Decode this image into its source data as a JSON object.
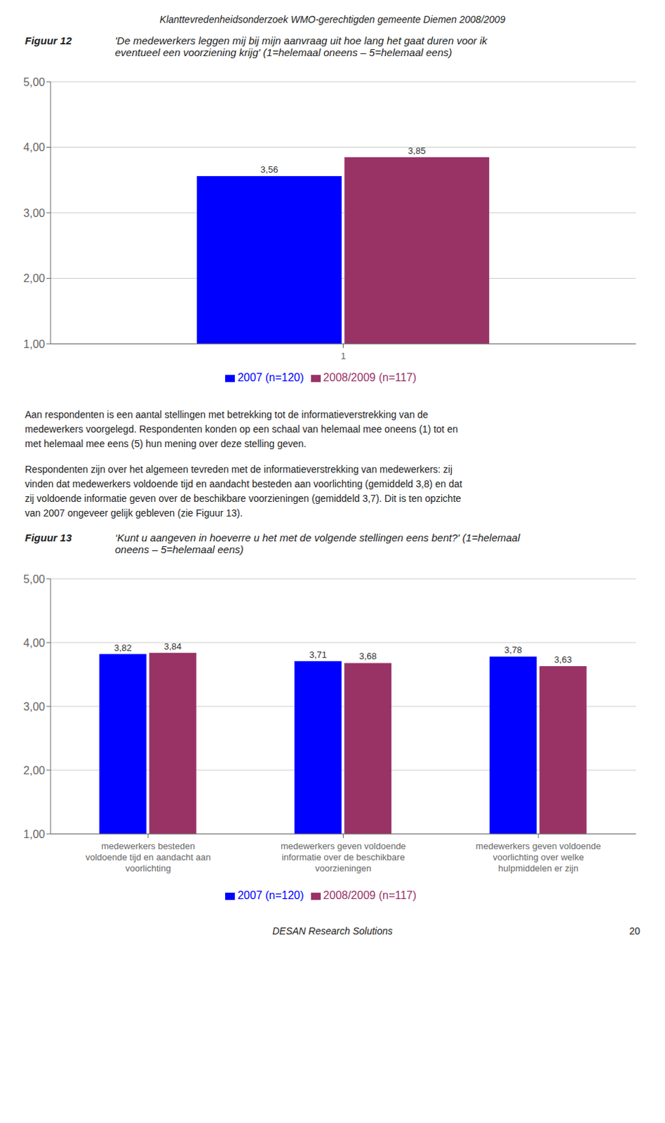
{
  "chart_data": [
    {
      "type": "bar",
      "title": "Figuur 12",
      "subtitle": [
        "'De medewerkers leggen mij bij mijn aanvraag uit hoe lang het gaat duren voor ik",
        "eventueel een voorziening krijg' (1=helemaal oneens – 5=helemaal eens)"
      ],
      "categories": [
        "1"
      ],
      "series": [
        {
          "name": "2007 (n=120)",
          "color": "#0000FF",
          "values": [
            3.56
          ],
          "value_labels": [
            "3,56"
          ]
        },
        {
          "name": "2008/2009 (n=117)",
          "color": "#993366",
          "values": [
            3.85
          ],
          "value_labels": [
            "3,85"
          ]
        }
      ],
      "ylim": [
        1.0,
        5.0
      ],
      "yticks": [
        {
          "value": 1.0,
          "label": "1,00"
        },
        {
          "value": 2.0,
          "label": "2,00"
        },
        {
          "value": 3.0,
          "label": "3,00"
        },
        {
          "value": 4.0,
          "label": "4,00"
        },
        {
          "value": 5.0,
          "label": "5,00"
        }
      ],
      "grid": true,
      "legend": "bottom",
      "data_labels": true,
      "annotations": [
        [
          "Klanttevredenheidsonderzoek WMO-gerechtigden gemeente Diemen 2008/2009"
        ],
        [
          "Aan respondenten is een aantal stellingen met betrekking tot de informatieverstrekking van de",
          "medewerkers voorgelegd. Respondenten konden op een schaal van helemaal mee oneens (1) tot en",
          "met helemaal mee eens (5) hun mening over deze stelling geven."
        ],
        [
          "Respondenten zijn over het algemeen tevreden met de informatieverstrekking van medewerkers: zij",
          "vinden dat medewerkers voldoende tijd en aandacht besteden aan voorlichting (gemiddeld 3,8) en dat",
          "zij voldoende informatie geven over de beschikbare voorzieningen (gemiddeld 3,7). Dit is ten opzichte",
          "van 2007 ongeveer gelijk gebleven (zie Figuur 13)."
        ]
      ]
    },
    {
      "type": "bar",
      "title": "Figuur 13",
      "subtitle": [
        "‘Kunt u aangeven in hoeverre u het met de volgende stellingen eens bent?' (1=helemaal",
        "oneens – 5=helemaal eens)"
      ],
      "categories": [
        "medewerkers besteden\nvoldoende tijd en aandacht aan\nvoorlichting",
        "medewerkers geven voldoende\ninformatie over de beschikbare\nvoorzieningen",
        "medewerkers geven voldoende\nvoorlichting over welke\nhulpmiddelen er zijn"
      ],
      "series": [
        {
          "name": "2007 (n=120)",
          "color": "#0000FF",
          "values": [
            3.82,
            3.71,
            3.78
          ],
          "value_labels": [
            "3,82",
            "3,71",
            "3,78"
          ]
        },
        {
          "name": "2008/2009 (n=117)",
          "color": "#993366",
          "values": [
            3.84,
            3.68,
            3.63
          ],
          "value_labels": [
            "3,84",
            "3,68",
            "3,63"
          ]
        }
      ],
      "ylim": [
        1.0,
        5.0
      ],
      "yticks": [
        {
          "value": 1.0,
          "label": "1,00"
        },
        {
          "value": 2.0,
          "label": "2,00"
        },
        {
          "value": 3.0,
          "label": "3,00"
        },
        {
          "value": 4.0,
          "label": "4,00"
        },
        {
          "value": 5.0,
          "label": "5,00"
        }
      ],
      "grid": true,
      "legend": "bottom",
      "data_labels": true,
      "annotations": [
        [
          "DESAN Research Solutions"
        ],
        [
          "20"
        ]
      ]
    }
  ]
}
